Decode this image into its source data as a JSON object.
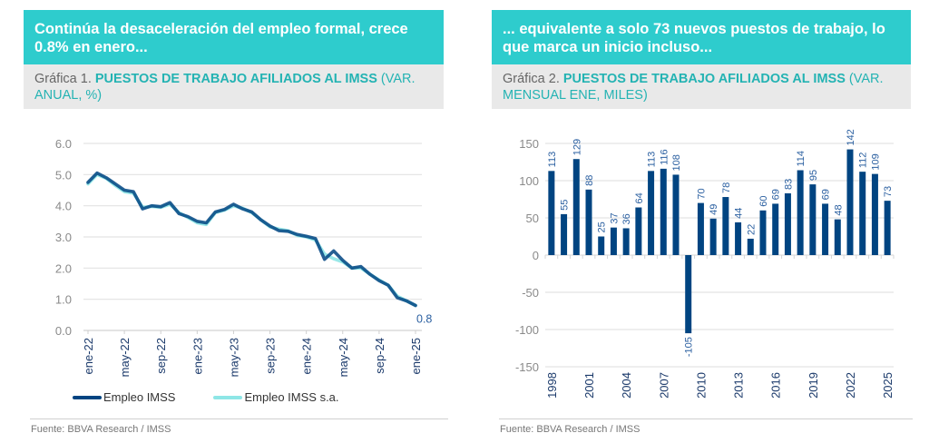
{
  "panel1": {
    "headline": "Continúa la desaceleración del empleo formal, crece 0.8% en enero...",
    "subtitle_prefix": "Gráfica 1. ",
    "subtitle_bold": "PUESTOS DE TRABAJO AFILIADOS AL IMSS",
    "subtitle_suffix": " (VAR. ANUAL, %)",
    "source": "Fuente: BBVA Research / IMSS"
  },
  "panel2": {
    "headline": "... equivalente a solo 73 nuevos puestos de trabajo, lo que marca un inicio incluso...",
    "subtitle_prefix": "Gráfica 2. ",
    "subtitle_bold": "PUESTOS DE TRABAJO AFILIADOS AL IMSS",
    "subtitle_suffix": " (VAR. MENSUAL ENE, MILES)",
    "source": "Fuente: BBVA Research / IMSS"
  },
  "colors": {
    "headline_bg": "#2ecccd",
    "accent_text": "#24b3b3",
    "series_dark": "#004481",
    "series_light": "#8ee6e6",
    "bar": "#004481",
    "label": "#2a5fa0"
  },
  "chart_data": [
    {
      "type": "line",
      "title": "PUESTOS DE TRABAJO AFILIADOS AL IMSS (VAR. ANUAL, %)",
      "xlabel": "",
      "ylabel": "",
      "ylim": [
        0,
        6
      ],
      "yticks": [
        "0.0",
        "1.0",
        "2.0",
        "3.0",
        "4.0",
        "5.0",
        "6.0"
      ],
      "xtick_labels": [
        "ene-22",
        "may-22",
        "sep-22",
        "ene-23",
        "may-23",
        "sep-23",
        "ene-24",
        "may-24",
        "sep-24",
        "ene-25"
      ],
      "xtick_every": 4,
      "grid": true,
      "legend": "bottom",
      "end_label": "0.8",
      "x": [
        "ene-22",
        "feb-22",
        "mar-22",
        "abr-22",
        "may-22",
        "jun-22",
        "jul-22",
        "ago-22",
        "sep-22",
        "oct-22",
        "nov-22",
        "dic-22",
        "ene-23",
        "feb-23",
        "mar-23",
        "abr-23",
        "may-23",
        "jun-23",
        "jul-23",
        "ago-23",
        "sep-23",
        "oct-23",
        "nov-23",
        "dic-23",
        "ene-24",
        "feb-24",
        "mar-24",
        "abr-24",
        "may-24",
        "jun-24",
        "jul-24",
        "ago-24",
        "sep-24",
        "oct-24",
        "nov-24",
        "dic-24",
        "ene-25"
      ],
      "series": [
        {
          "name": "Empleo IMSS",
          "values": [
            4.75,
            5.05,
            4.9,
            4.7,
            4.5,
            4.45,
            3.9,
            4.0,
            3.97,
            4.1,
            3.75,
            3.65,
            3.5,
            3.45,
            3.8,
            3.88,
            4.05,
            3.9,
            3.8,
            3.55,
            3.35,
            3.2,
            3.18,
            3.08,
            3.02,
            2.95,
            2.28,
            2.55,
            2.25,
            2.0,
            2.05,
            1.8,
            1.6,
            1.45,
            1.05,
            0.95,
            0.8
          ]
        },
        {
          "name": "Empleo IMSS s.a.",
          "values": [
            4.7,
            5.0,
            4.88,
            4.65,
            4.45,
            4.4,
            3.95,
            3.98,
            3.95,
            4.05,
            3.78,
            3.62,
            3.45,
            3.4,
            3.78,
            3.86,
            4.0,
            3.92,
            3.78,
            3.55,
            3.32,
            3.25,
            3.2,
            3.05,
            3.0,
            2.9,
            2.45,
            2.3,
            2.2,
            2.0,
            2.0,
            1.8,
            1.62,
            1.45,
            1.1,
            0.95,
            0.8
          ]
        }
      ]
    },
    {
      "type": "bar",
      "title": "PUESTOS DE TRABAJO AFILIADOS AL IMSS (VAR. MENSUAL ENE, MILES)",
      "xlabel": "",
      "ylabel": "",
      "ylim": [
        -150,
        150
      ],
      "yticks": [
        "-150",
        "-100",
        "-50",
        "0",
        "50",
        "100",
        "150"
      ],
      "grid": true,
      "categories": [
        "1998",
        "1999",
        "2000",
        "2001",
        "2002",
        "2003",
        "2004",
        "2005",
        "2006",
        "2007",
        "2008",
        "2009",
        "2010",
        "2011",
        "2012",
        "2013",
        "2014",
        "2015",
        "2016",
        "2017",
        "2018",
        "2019",
        "2020",
        "2021",
        "2022",
        "2023",
        "2024",
        "2025"
      ],
      "xtick_labels": [
        "1998",
        "2001",
        "2004",
        "2007",
        "2010",
        "2013",
        "2016",
        "2019",
        "2022",
        "2025"
      ],
      "xtick_every": 3,
      "values": [
        113,
        55,
        129,
        88,
        25,
        37,
        36,
        64,
        113,
        116,
        108,
        -105,
        70,
        49,
        78,
        44,
        22,
        60,
        69,
        83,
        114,
        95,
        69,
        48,
        142,
        112,
        109,
        73
      ]
    }
  ]
}
